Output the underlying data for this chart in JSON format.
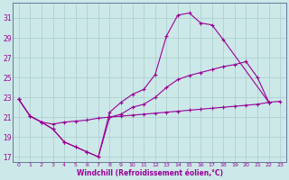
{
  "xlabel": "Windchill (Refroidissement éolien,°C)",
  "bg_color": "#cce8e8",
  "grid_color": "#aacccc",
  "line_color": "#990099",
  "xlim": [
    -0.5,
    23.5
  ],
  "ylim": [
    16.5,
    32.5
  ],
  "xticks": [
    0,
    1,
    2,
    3,
    4,
    5,
    6,
    7,
    8,
    9,
    10,
    11,
    12,
    13,
    14,
    15,
    16,
    17,
    18,
    19,
    20,
    21,
    22,
    23
  ],
  "yticks": [
    17,
    19,
    21,
    23,
    25,
    27,
    29,
    31
  ],
  "line1_x": [
    0,
    1,
    2,
    3,
    4,
    5,
    6,
    7,
    8,
    9,
    10,
    11,
    12,
    13,
    14,
    15,
    16,
    17,
    18,
    22
  ],
  "line1_y": [
    22.8,
    21.1,
    20.5,
    19.8,
    18.5,
    18.0,
    17.5,
    17.0,
    21.5,
    22.5,
    23.3,
    23.8,
    25.3,
    29.2,
    31.3,
    31.5,
    30.5,
    30.3,
    28.8,
    22.5
  ],
  "line2_x": [
    0,
    1,
    2,
    3,
    4,
    5,
    6,
    7,
    8,
    9,
    10,
    11,
    12,
    13,
    14,
    15,
    16,
    17,
    18,
    19,
    20,
    21,
    22
  ],
  "line2_y": [
    22.8,
    21.1,
    20.5,
    19.8,
    18.5,
    18.0,
    17.5,
    17.0,
    21.0,
    21.3,
    22.0,
    22.3,
    23.0,
    24.0,
    24.8,
    25.2,
    25.5,
    25.8,
    26.1,
    26.3,
    26.6,
    25.0,
    22.5
  ],
  "line3_x": [
    0,
    1,
    2,
    3,
    4,
    5,
    6,
    7,
    8,
    9,
    10,
    11,
    12,
    13,
    14,
    15,
    16,
    17,
    18,
    19,
    20,
    21,
    22,
    23
  ],
  "line3_y": [
    22.8,
    21.1,
    20.5,
    20.3,
    20.5,
    20.6,
    20.7,
    20.9,
    21.0,
    21.1,
    21.2,
    21.3,
    21.4,
    21.5,
    21.6,
    21.7,
    21.8,
    21.9,
    22.0,
    22.1,
    22.2,
    22.3,
    22.5,
    22.6
  ]
}
